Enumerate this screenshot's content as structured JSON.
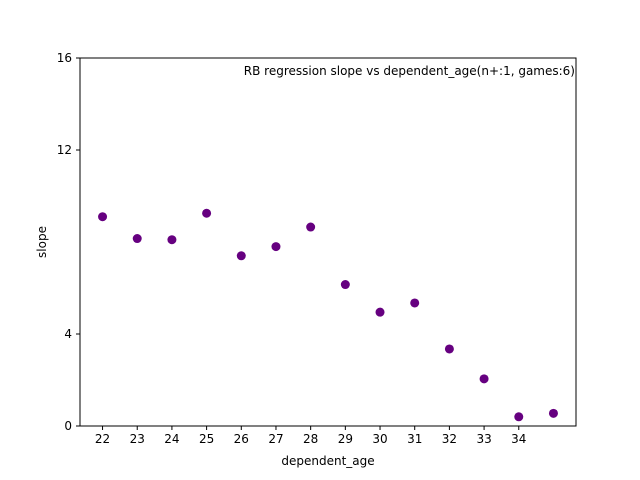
{
  "chart_data": {
    "type": "scatter",
    "title": "RB regression slope vs dependent_age(n+:1, games:6)",
    "xlabel": "dependent_age",
    "ylabel": "slope",
    "x_ticks": [
      22,
      23,
      24,
      25,
      26,
      27,
      28,
      29,
      30,
      31,
      32,
      33,
      34
    ],
    "y_ticks": [
      0,
      4,
      12,
      16
    ],
    "xlim": [
      21.35,
      35.65
    ],
    "ylim": [
      0,
      16
    ],
    "grid": false,
    "marker_color": "#660080",
    "points": [
      {
        "x": 22,
        "y": 9.1
      },
      {
        "x": 23,
        "y": 8.15
      },
      {
        "x": 24,
        "y": 8.1
      },
      {
        "x": 25,
        "y": 9.25
      },
      {
        "x": 26,
        "y": 7.4
      },
      {
        "x": 27,
        "y": 7.8
      },
      {
        "x": 28,
        "y": 8.65
      },
      {
        "x": 29,
        "y": 6.15
      },
      {
        "x": 30,
        "y": 4.95
      },
      {
        "x": 31,
        "y": 5.35
      },
      {
        "x": 32,
        "y": 3.35
      },
      {
        "x": 33,
        "y": 2.05
      },
      {
        "x": 34,
        "y": 0.4
      },
      {
        "x": 35,
        "y": 0.55
      }
    ]
  }
}
